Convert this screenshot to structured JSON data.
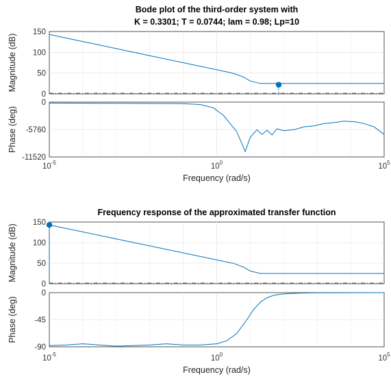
{
  "chart_data": [
    {
      "type": "line",
      "title_line1": "Bode plot of the third-order system with",
      "title_line2": "K = 0.3301; T = 0.0744; lam = 0.98; Lp=10",
      "xlabel": "Frequency  (rad/s)",
      "x_scale": "log",
      "xlim": [
        1e-05,
        100000
      ],
      "x_ticks": [
        {
          "base": "10",
          "exp": "-5"
        },
        {
          "base": "10",
          "exp": "0"
        },
        {
          "base": "10",
          "exp": "5"
        }
      ],
      "grid": true,
      "magnitude": {
        "ylabel": "Magnitude (dB)",
        "ylim": [
          0,
          150
        ],
        "yticks": [
          "0",
          "50",
          "100",
          "150"
        ],
        "series_log10_w": [
          -5,
          -4,
          -3,
          -2,
          -1,
          0,
          0.5,
          0.8,
          1.0,
          1.3,
          5
        ],
        "series_db": [
          143,
          126,
          109,
          92,
          75,
          58,
          49.5,
          40.5,
          31,
          25,
          25
        ],
        "marker": {
          "log10_w": 1.85,
          "db": 22
        }
      },
      "phase": {
        "ylabel": "Phase (deg)",
        "ylim": [
          -11520,
          0
        ],
        "yticks": [
          "0",
          "-5760",
          "-11520"
        ],
        "series_log10_w": [
          -5,
          -3,
          -1,
          -0.5,
          -0.1,
          0.2,
          0.6,
          0.85,
          1.0,
          1.2,
          1.35,
          1.5,
          1.65,
          1.8,
          2.0,
          2.3,
          2.6,
          2.9,
          3.2,
          3.5,
          3.8,
          4.1,
          4.4,
          4.7,
          5
        ],
        "series_deg": [
          -200,
          -250,
          -320,
          -500,
          -1200,
          -2800,
          -6200,
          -10400,
          -7400,
          -5800,
          -6800,
          -5900,
          -6900,
          -5600,
          -6000,
          -5800,
          -5200,
          -5000,
          -4500,
          -4300,
          -4000,
          -4100,
          -4500,
          -5200,
          -6800
        ]
      }
    },
    {
      "type": "line",
      "title_line1": "Frequency response of the approximated transfer function",
      "xlabel": "Frequency  (rad/s)",
      "x_scale": "log",
      "xlim": [
        1e-05,
        100000
      ],
      "x_ticks": [
        {
          "base": "10",
          "exp": "-5"
        },
        {
          "base": "10",
          "exp": "0"
        },
        {
          "base": "10",
          "exp": "5"
        }
      ],
      "grid": true,
      "magnitude": {
        "ylabel": "Magnitude (dB)",
        "ylim": [
          0,
          150
        ],
        "yticks": [
          "0",
          "50",
          "100",
          "150"
        ],
        "series_log10_w": [
          -5,
          -4,
          -3,
          -2,
          -1,
          0,
          0.5,
          0.8,
          1.0,
          1.3,
          5
        ],
        "series_db": [
          143,
          126,
          109,
          92,
          75,
          58,
          49.5,
          40.5,
          31,
          25,
          25
        ],
        "marker": {
          "log10_w": -5,
          "db": 143
        }
      },
      "phase": {
        "ylabel": "Phase (deg)",
        "ylim": [
          -90,
          0
        ],
        "yticks": [
          "0",
          "-45",
          "-90"
        ],
        "series_log10_w": [
          -5,
          -4.5,
          -4,
          -3.5,
          -3,
          -2.5,
          -2,
          -1.5,
          -1,
          -0.5,
          0,
          0.3,
          0.6,
          0.9,
          1.1,
          1.3,
          1.5,
          1.7,
          2.0,
          2.5,
          3.0,
          4.0,
          5.0
        ],
        "series_deg": [
          -88,
          -87,
          -85,
          -87,
          -89,
          -88,
          -87,
          -85,
          -87,
          -87,
          -85,
          -80,
          -68,
          -45,
          -28,
          -16,
          -8.5,
          -4.5,
          -2,
          -0.7,
          -0.3,
          -0.1,
          0
        ]
      }
    }
  ]
}
